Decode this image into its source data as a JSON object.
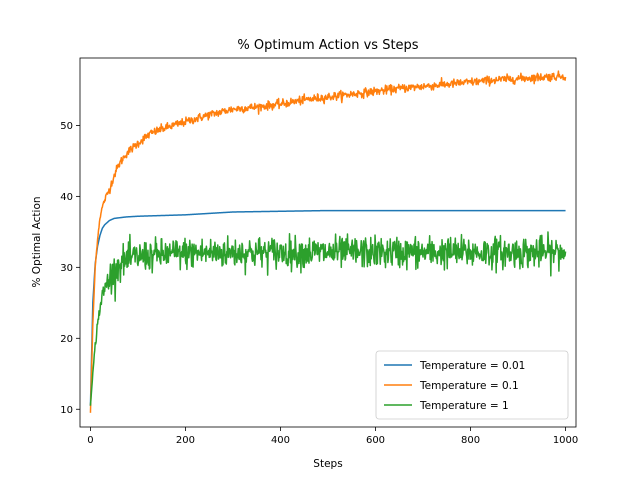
{
  "chart_data": {
    "type": "line",
    "title": "% Optimum Action vs Steps",
    "xlabel": "Steps",
    "ylabel": "% Optimal Action",
    "xlim": [
      -22,
      1022
    ],
    "ylim": [
      7.5,
      59.5
    ],
    "xticks": [
      0,
      200,
      400,
      600,
      800,
      1000
    ],
    "yticks": [
      10,
      20,
      30,
      40,
      50
    ],
    "grid": false,
    "legend_position": "lower-right",
    "series": [
      {
        "name": "Temperature = 0.01",
        "color": "#1f77b4",
        "points": [
          [
            0,
            10.5
          ],
          [
            5,
            25
          ],
          [
            10,
            30.5
          ],
          [
            15,
            33
          ],
          [
            20,
            34.5
          ],
          [
            25,
            35.5
          ],
          [
            30,
            36
          ],
          [
            40,
            36.6
          ],
          [
            50,
            36.9
          ],
          [
            75,
            37.1
          ],
          [
            100,
            37.2
          ],
          [
            150,
            37.3
          ],
          [
            200,
            37.4
          ],
          [
            250,
            37.6
          ],
          [
            300,
            37.8
          ],
          [
            400,
            37.9
          ],
          [
            500,
            38.0
          ],
          [
            600,
            38.0
          ],
          [
            800,
            38.0
          ],
          [
            1000,
            38.0
          ]
        ]
      },
      {
        "name": "Temperature = 0.1",
        "color": "#ff7f0e",
        "points": [
          [
            0,
            9.5
          ],
          [
            5,
            22
          ],
          [
            10,
            30
          ],
          [
            15,
            34
          ],
          [
            20,
            37
          ],
          [
            25,
            38.5
          ],
          [
            30,
            39.5
          ],
          [
            40,
            41
          ],
          [
            50,
            43
          ],
          [
            60,
            44.5
          ],
          [
            75,
            46
          ],
          [
            100,
            47.5
          ],
          [
            125,
            48.8
          ],
          [
            150,
            49.5
          ],
          [
            175,
            50
          ],
          [
            200,
            50.5
          ],
          [
            250,
            51.5
          ],
          [
            300,
            52.3
          ],
          [
            350,
            52.6
          ],
          [
            400,
            53
          ],
          [
            450,
            53.6
          ],
          [
            500,
            54
          ],
          [
            550,
            54.4
          ],
          [
            600,
            54.8
          ],
          [
            650,
            55.2
          ],
          [
            700,
            55.5
          ],
          [
            750,
            55.8
          ],
          [
            800,
            56.1
          ],
          [
            850,
            56.4
          ],
          [
            900,
            56.6
          ],
          [
            950,
            56.8
          ],
          [
            1000,
            57
          ]
        ],
        "noise": 0.3
      },
      {
        "name": "Temperature = 1",
        "color": "#2ca02c",
        "points": [
          [
            0,
            10.5
          ],
          [
            5,
            15
          ],
          [
            10,
            19
          ],
          [
            15,
            22
          ],
          [
            20,
            24.5
          ],
          [
            30,
            27
          ],
          [
            40,
            28.5
          ],
          [
            50,
            29.5
          ],
          [
            60,
            30.3
          ],
          [
            75,
            31
          ],
          [
            100,
            31.5
          ],
          [
            150,
            31.8
          ],
          [
            200,
            32
          ],
          [
            300,
            32.1
          ],
          [
            500,
            32.1
          ],
          [
            700,
            32.1
          ],
          [
            1000,
            32.1
          ]
        ],
        "noise": 1.1
      }
    ]
  }
}
